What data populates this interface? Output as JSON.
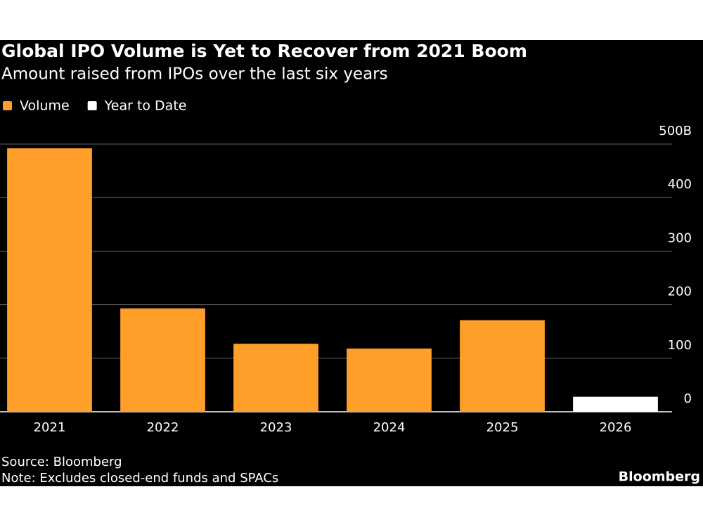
{
  "chart_data": {
    "type": "bar",
    "title": "Global IPO Volume is Yet to Recover from 2021 Boom",
    "subtitle": "Amount raised from IPOs over the last six years",
    "categories": [
      "2021",
      "2022",
      "2023",
      "2024",
      "2025",
      "2026"
    ],
    "series": [
      {
        "name": "Volume",
        "color": "#ff9f2a",
        "values": [
          492,
          193,
          127,
          118,
          171,
          null
        ]
      },
      {
        "name": "Year to Date",
        "color": "#ffffff",
        "values": [
          null,
          null,
          null,
          null,
          null,
          28
        ]
      }
    ],
    "ylim": [
      0,
      500
    ],
    "yticks": [
      0,
      100,
      200,
      300,
      400,
      {
        "value": 500,
        "label": "500B"
      }
    ],
    "grid": true,
    "legend": "top-left",
    "source": "Source: Bloomberg",
    "note": "Note: Excludes closed-end funds and SPACs",
    "logo": "Bloomberg"
  }
}
